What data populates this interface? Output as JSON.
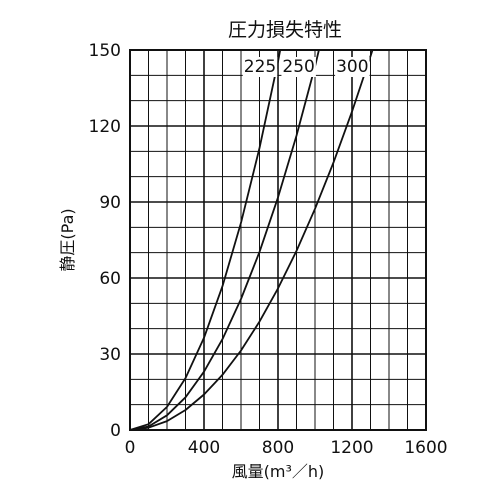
{
  "chart_data": {
    "type": "line",
    "title": "圧力損失特性",
    "xlabel": "風量(m³／h)",
    "ylabel": "静圧(Pa)",
    "xlim": [
      0,
      1600
    ],
    "ylim": [
      0,
      150
    ],
    "x_ticks": [
      0,
      400,
      800,
      1200,
      1600
    ],
    "x_tick_labels": [
      "0",
      "400",
      "800",
      "1200",
      "1600"
    ],
    "y_ticks": [
      0,
      30,
      60,
      90,
      120,
      150
    ],
    "y_tick_labels": [
      "0",
      "30",
      "60",
      "90",
      "120",
      "150"
    ],
    "grid": true,
    "series": [
      {
        "name": "225",
        "label": "225",
        "x": [
          0,
          100,
          200,
          300,
          400,
          500,
          600,
          700,
          800,
          812
        ],
        "y": [
          0,
          2.3,
          9.1,
          20.5,
          36.4,
          56.8,
          81.8,
          111.3,
          145.4,
          150
        ]
      },
      {
        "name": "250",
        "label": "250",
        "x": [
          0,
          100,
          200,
          300,
          400,
          500,
          600,
          700,
          800,
          900,
          1000,
          1021
        ],
        "y": [
          0,
          1.4,
          5.8,
          12.9,
          23,
          35.9,
          51.7,
          70.3,
          91.8,
          116.2,
          143.5,
          150
        ]
      },
      {
        "name": "300",
        "label": "300",
        "x": [
          0,
          100,
          200,
          300,
          400,
          500,
          600,
          700,
          800,
          900,
          1000,
          1100,
          1200,
          1300,
          1311
        ],
        "y": [
          0,
          0.9,
          3.5,
          7.9,
          14,
          21.8,
          31.4,
          42.8,
          55.9,
          70.7,
          87.3,
          105.6,
          125.7,
          147.5,
          150
        ]
      }
    ]
  }
}
